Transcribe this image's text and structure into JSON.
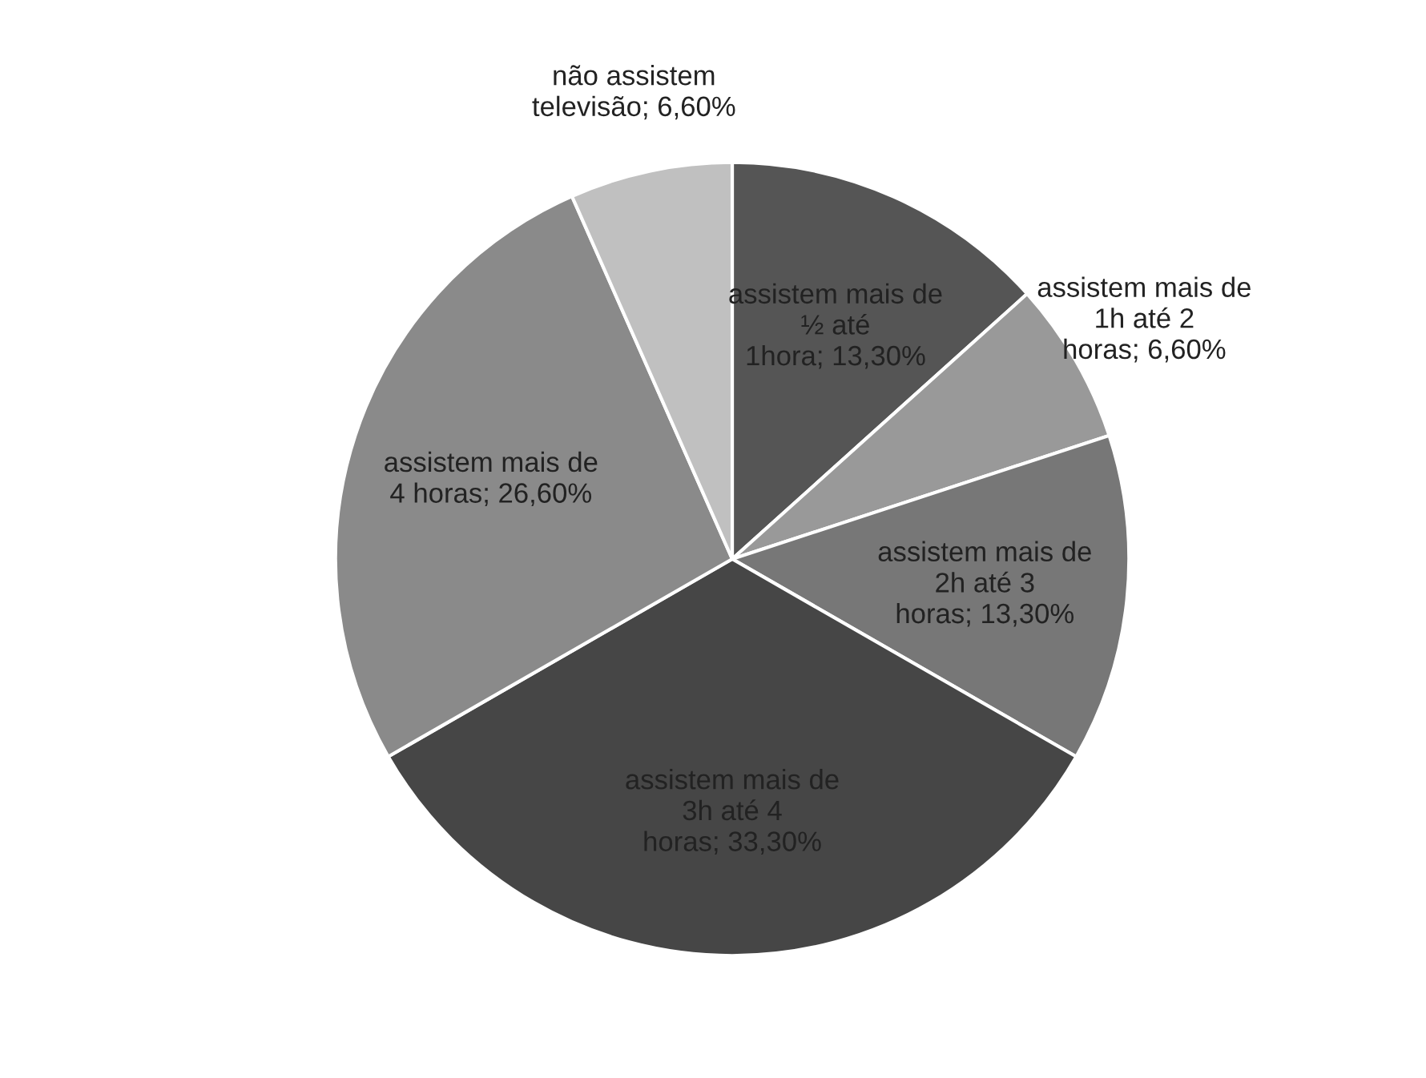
{
  "chart_data": {
    "type": "pie",
    "categories": [
      "assistem mais de ½ até 1hora",
      "assistem mais de 1h até 2 horas",
      "assistem mais de 2h até 3 horas",
      "assistem mais de 3h até 4 horas",
      "assistem mais de 4 horas",
      "não assistem televisão"
    ],
    "values": [
      13.3,
      6.6,
      13.3,
      33.3,
      26.6,
      6.6
    ],
    "value_labels": [
      "13,30%",
      "6,60%",
      "13,30%",
      "33,30%",
      "26,60%",
      "6,60%"
    ],
    "colors": [
      "#555555",
      "#999999",
      "#777777",
      "#464646",
      "#8a8a8a",
      "#c0c0c0"
    ],
    "legend": false
  }
}
